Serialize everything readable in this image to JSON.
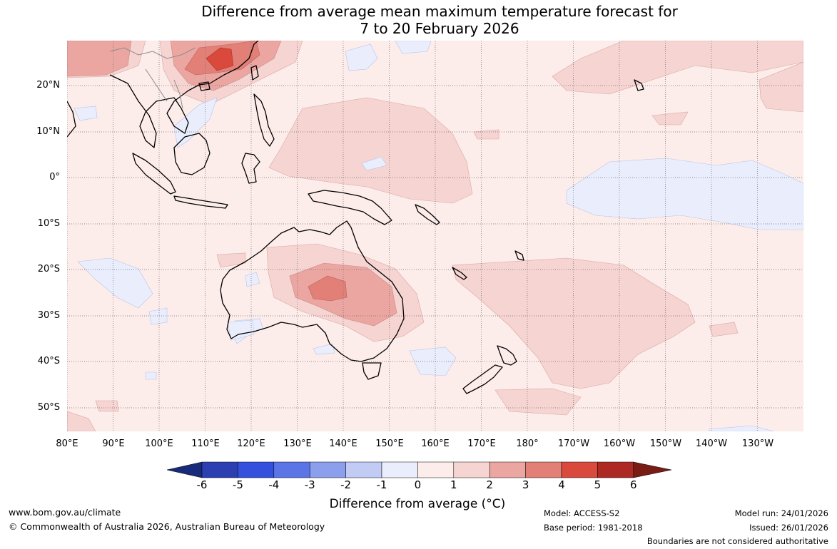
{
  "title": {
    "line1": "Difference from average mean maximum temperature forecast for",
    "line2": "7 to 20 February 2026"
  },
  "latitude_labels": [
    "20°N",
    "10°N",
    "0°",
    "10°S",
    "20°S",
    "30°S",
    "40°S",
    "50°S"
  ],
  "longitude_labels": [
    "80°E",
    "90°E",
    "100°E",
    "110°E",
    "120°E",
    "130°E",
    "140°E",
    "150°E",
    "160°E",
    "170°E",
    "180°",
    "170°W",
    "160°W",
    "150°W",
    "140°W",
    "130°W"
  ],
  "colorbar": {
    "ticks": [
      "-6",
      "-5",
      "-4",
      "-3",
      "-2",
      "-1",
      "0",
      "1",
      "2",
      "3",
      "4",
      "5",
      "6"
    ],
    "colors": [
      "#1a2a7a",
      "#2c3fb0",
      "#3351dd",
      "#5b74e6",
      "#8b9fec",
      "#c2cbf4",
      "#eaeefc",
      "#fcecea",
      "#f5d4d2",
      "#eba6a2",
      "#e28078",
      "#d94a3c",
      "#ad2a24",
      "#7a1c16"
    ],
    "label": "Difference from average (°C)"
  },
  "footer": {
    "website": "www.bom.gov.au/climate",
    "copyright": "© Commonwealth of Australia 2026, Australian Bureau of Meteorology",
    "model": "Model: ACCESS-S2",
    "base_period": "Base period: 1981-2018",
    "model_run": "Model run: 24/01/2026",
    "issued": "Issued: 26/01/2026",
    "disclaimer": "Boundaries are not considered authoritative"
  }
}
